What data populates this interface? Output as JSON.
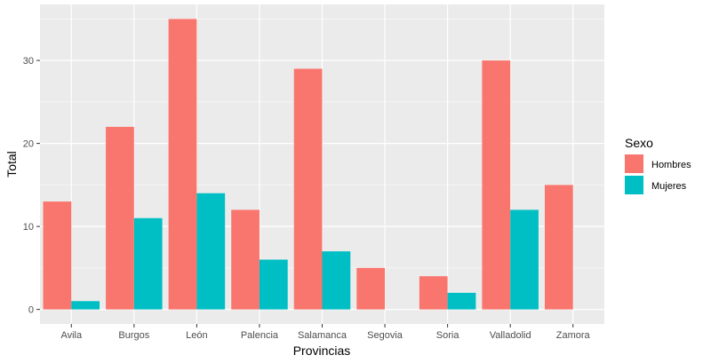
{
  "chart_data": {
    "type": "bar",
    "categories": [
      "Avila",
      "Burgos",
      "León",
      "Palencia",
      "Salamanca",
      "Segovia",
      "Soria",
      "Valladolid",
      "Zamora"
    ],
    "series": [
      {
        "name": "Hombres",
        "color": "#F8766D",
        "values": [
          13,
          22,
          35,
          12,
          29,
          5,
          4,
          30,
          15
        ]
      },
      {
        "name": "Mujeres",
        "color": "#00BFC4",
        "values": [
          1,
          11,
          14,
          6,
          7,
          0,
          2,
          12,
          0
        ]
      }
    ],
    "xlabel": "Provincias",
    "ylabel": "Total",
    "ylim": [
      -1.75,
      36.75
    ],
    "yticks": [
      0,
      10,
      20,
      30
    ],
    "legend": {
      "title": "Sexo",
      "position": "right"
    },
    "grid": true,
    "panel_background": "#EBEBEB"
  }
}
